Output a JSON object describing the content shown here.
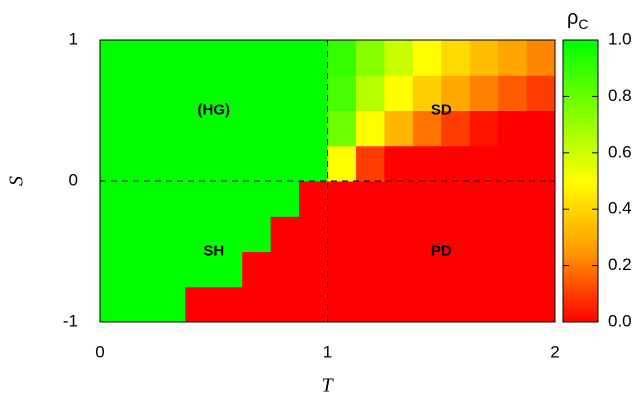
{
  "chart_data": {
    "type": "heatmap",
    "x_label": "T",
    "y_label": "S",
    "xbins": [
      0,
      0.125,
      0.25,
      0.375,
      0.5,
      0.625,
      0.75,
      0.875,
      1,
      1.125,
      1.25,
      1.375,
      1.5,
      1.625,
      1.75,
      1.875,
      2
    ],
    "ybins": [
      -1,
      -0.75,
      -0.5,
      -0.25,
      0,
      0.25,
      0.5,
      0.75,
      1
    ],
    "values": [
      [
        1,
        1,
        1,
        0,
        0,
        0,
        0,
        0,
        0,
        0,
        0,
        0,
        0,
        0,
        0,
        0
      ],
      [
        1,
        1,
        1,
        1,
        1,
        0,
        0,
        0,
        0,
        0,
        0,
        0,
        0,
        0,
        0,
        0
      ],
      [
        1,
        1,
        1,
        1,
        1,
        1,
        0,
        0,
        0,
        0,
        0,
        0,
        0,
        0,
        0,
        0
      ],
      [
        1,
        1,
        1,
        1,
        1,
        1,
        1,
        0,
        0,
        0,
        0,
        0,
        0,
        0,
        0,
        0
      ],
      [
        1,
        1,
        1,
        1,
        1,
        1,
        1,
        1,
        0.5,
        0.1,
        0,
        0,
        0,
        0,
        0,
        0
      ],
      [
        1,
        1,
        1,
        1,
        1,
        1,
        1,
        1,
        0.79,
        0.5,
        0.32,
        0.19,
        0.1,
        0.03,
        0,
        0
      ],
      [
        1,
        1,
        1,
        1,
        1,
        1,
        1,
        1,
        0.86,
        0.65,
        0.5,
        0.38,
        0.29,
        0.21,
        0.15,
        0.1
      ],
      [
        1,
        1,
        1,
        1,
        1,
        1,
        1,
        1,
        0.9,
        0.74,
        0.61,
        0.5,
        0.41,
        0.34,
        0.28,
        0.22
      ]
    ],
    "xlim": [
      0,
      2
    ],
    "ylim": [
      -1,
      1
    ],
    "xticks": [
      0,
      1,
      2
    ],
    "yticks": [
      -1,
      0,
      1
    ],
    "dashed_lines": true,
    "colorscale": [
      [
        0,
        "#ff0000"
      ],
      [
        0.25,
        "#ff9900"
      ],
      [
        0.5,
        "#ffff00"
      ],
      [
        1,
        "#00ff00"
      ]
    ],
    "colorbar_label": "ρ",
    "colorbar_label_sub": "C",
    "clim": [
      0,
      1
    ],
    "cticks": [
      {
        "value": 0,
        "label": "0.0"
      },
      {
        "value": 0.2,
        "label": "0.2"
      },
      {
        "value": 0.4,
        "label": "0.4"
      },
      {
        "value": 0.6,
        "label": "0.6"
      },
      {
        "value": 0.8,
        "label": "0.8"
      },
      {
        "value": 1,
        "label": "1.0"
      }
    ],
    "annotations": [
      "(HG)",
      "SD",
      "SH",
      "PD"
    ]
  }
}
